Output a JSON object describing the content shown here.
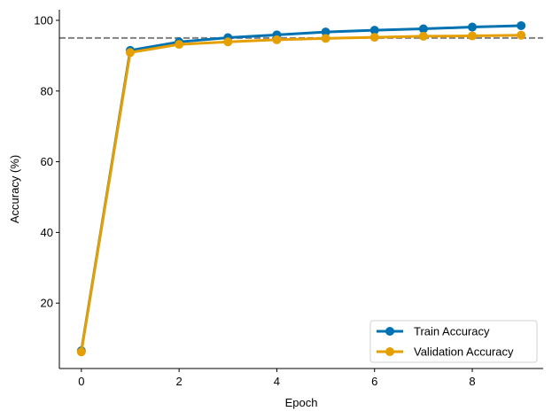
{
  "chart_data": {
    "type": "line",
    "title": "",
    "xlabel": "Epoch",
    "ylabel": "Accuracy (%)",
    "x": [
      0,
      1,
      2,
      3,
      4,
      5,
      6,
      7,
      8,
      9
    ],
    "xlim": [
      -0.45,
      9.45
    ],
    "ylim": [
      1.5,
      103
    ],
    "xticks": [
      0,
      2,
      4,
      6,
      8
    ],
    "yticks": [
      20,
      40,
      60,
      80,
      100
    ],
    "grid": false,
    "legend_position": "lower-right",
    "reference_line": {
      "y": 95,
      "style": "dashed",
      "color": "#808080"
    },
    "series": [
      {
        "name": "Train Accuracy",
        "color": "#0072B2",
        "values": [
          6.5,
          91.5,
          93.9,
          95.1,
          95.9,
          96.7,
          97.2,
          97.6,
          98.1,
          98.5
        ]
      },
      {
        "name": "Validation Accuracy",
        "color": "#E69F00",
        "values": [
          6.2,
          90.9,
          93.2,
          93.9,
          94.5,
          94.9,
          95.2,
          95.5,
          95.6,
          95.8
        ]
      }
    ]
  }
}
